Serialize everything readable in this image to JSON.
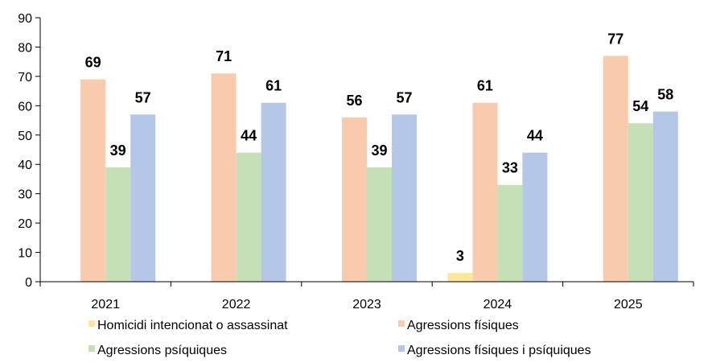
{
  "chart_data": {
    "type": "bar",
    "categories": [
      "2021",
      "2022",
      "2023",
      "2024",
      "2025"
    ],
    "series": [
      {
        "name": "Homicidi intencionat o assassinat",
        "values": [
          0,
          0,
          0,
          3,
          0
        ],
        "labels": [
          "",
          "",
          "",
          "3",
          ""
        ],
        "color": "#FFE699"
      },
      {
        "name": "Agressions físiques",
        "values": [
          69,
          71,
          56,
          61,
          77
        ],
        "labels": [
          "69",
          "71",
          "56",
          "61",
          "77"
        ],
        "color": "#F8CBAD"
      },
      {
        "name": "Agressions psíquiques",
        "values": [
          39,
          44,
          39,
          33,
          54
        ],
        "labels": [
          "39",
          "44",
          "39",
          "33",
          "54"
        ],
        "color": "#C5E0B4"
      },
      {
        "name": "Agressions físiques i psíquiques",
        "values": [
          57,
          61,
          57,
          44,
          58
        ],
        "labels": [
          "57",
          "61",
          "57",
          "44",
          "58"
        ],
        "color": "#B4C7E7"
      }
    ],
    "yticks": [
      "0",
      "10",
      "20",
      "30",
      "40",
      "50",
      "60",
      "70",
      "80",
      "90"
    ],
    "ylim": [
      0,
      90
    ],
    "grid": false,
    "legend": "bottom"
  }
}
